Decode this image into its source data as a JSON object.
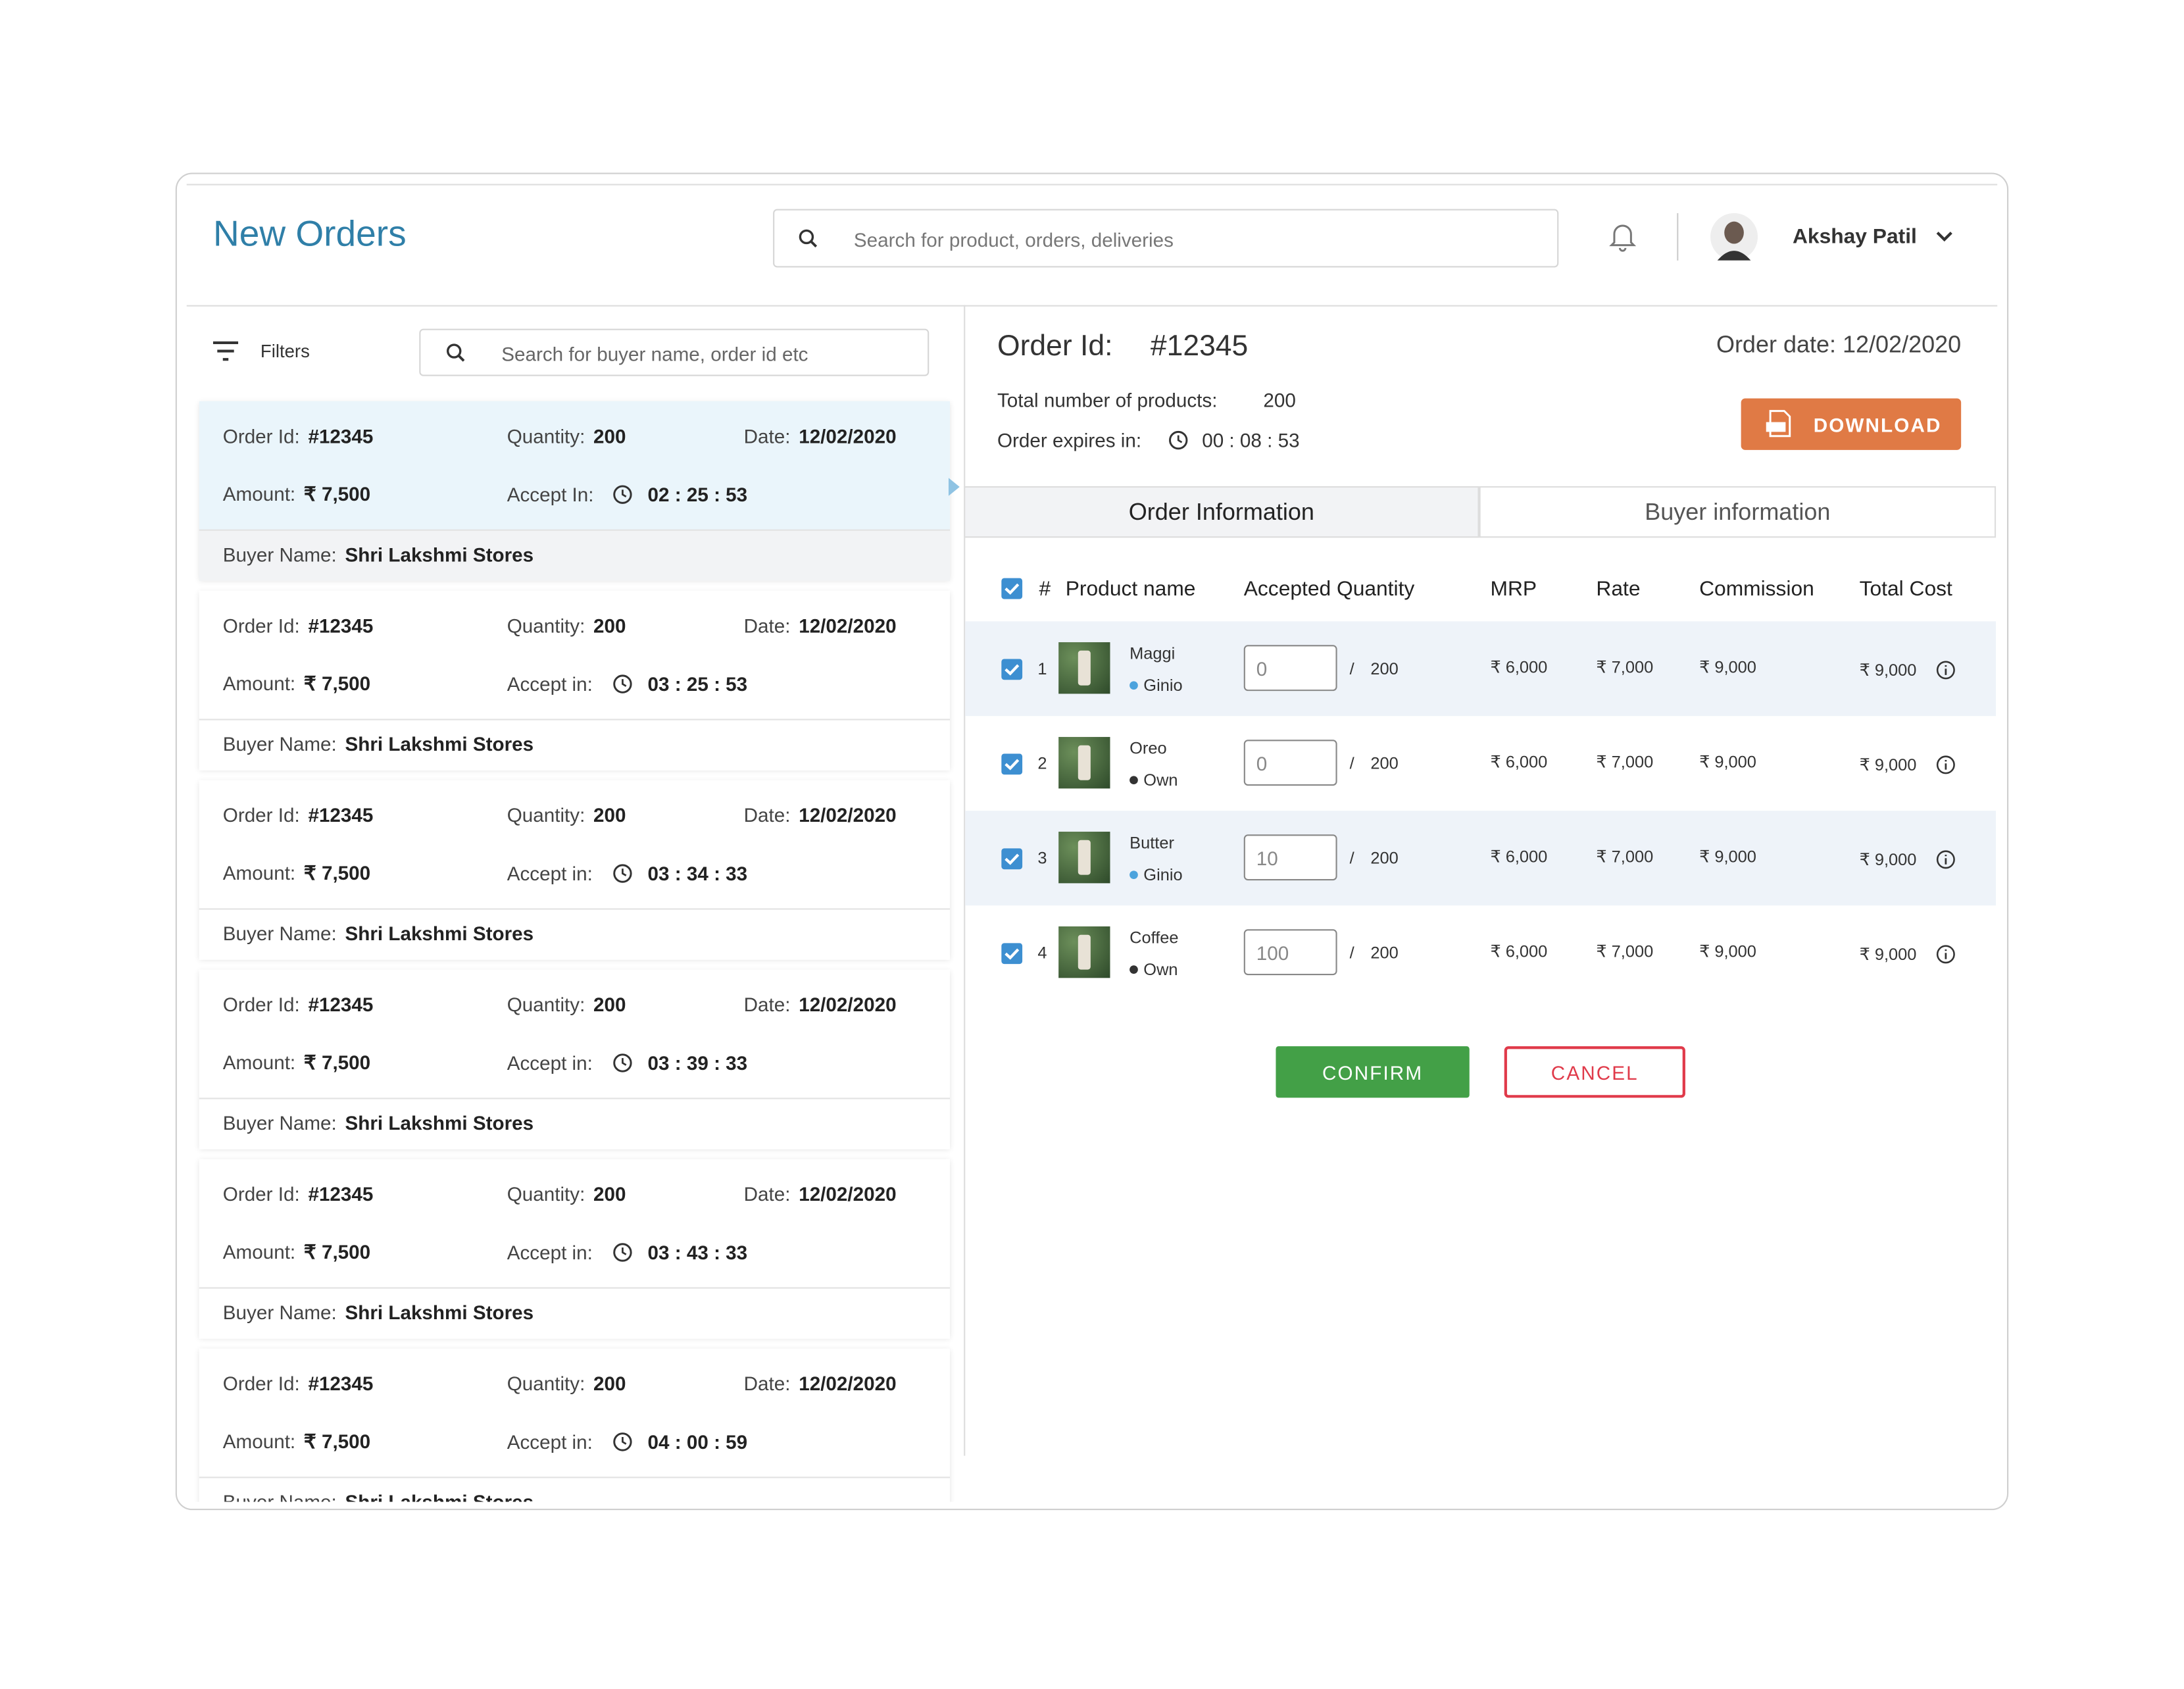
{
  "header": {
    "title": "New Orders",
    "search_placeholder": "Search for product, orders, deliveries",
    "user_name": "Akshay Patil"
  },
  "sidebar": {
    "filters": "Filters",
    "search_placeholder": "Search for buyer name, order id etc",
    "labels": {
      "order_id": "Order Id:",
      "quantity": "Quantity:",
      "date": "Date:",
      "amount": "Amount:",
      "buyer": "Buyer Name:"
    },
    "orders": [
      {
        "id": "#12345",
        "quantity": "200",
        "date": "12/02/2020",
        "amount": "₹ 7,500",
        "accept_label": "Accept In:",
        "accept_time": "02 : 25 : 53",
        "buyer": "Shri Lakshmi Stores"
      },
      {
        "id": "#12345",
        "quantity": "200",
        "date": "12/02/2020",
        "amount": "₹ 7,500",
        "accept_label": "Accept in:",
        "accept_time": "03 : 25 : 53",
        "buyer": "Shri Lakshmi Stores"
      },
      {
        "id": "#12345",
        "quantity": "200",
        "date": "12/02/2020",
        "amount": "₹ 7,500",
        "accept_label": "Accept in:",
        "accept_time": "03 : 34 : 33",
        "buyer": "Shri Lakshmi Stores"
      },
      {
        "id": "#12345",
        "quantity": "200",
        "date": "12/02/2020",
        "amount": "₹ 7,500",
        "accept_label": "Accept in:",
        "accept_time": "03 : 39 : 33",
        "buyer": "Shri Lakshmi Stores"
      },
      {
        "id": "#12345",
        "quantity": "200",
        "date": "12/02/2020",
        "amount": "₹ 7,500",
        "accept_label": "Accept in:",
        "accept_time": "03 : 43 : 33",
        "buyer": "Shri Lakshmi Stores"
      },
      {
        "id": "#12345",
        "quantity": "200",
        "date": "12/02/2020",
        "amount": "₹ 7,500",
        "accept_label": "Accept in:",
        "accept_time": "04 : 00 : 59",
        "buyer": "Shri Lakshmi Stores"
      }
    ]
  },
  "detail": {
    "order_id_label": "Order Id:",
    "order_id": "#12345",
    "order_date": "Order date: 12/02/2020",
    "total_products_label": "Total number of products:",
    "total_products": "200",
    "expires_label": "Order expires in:",
    "expires": "00 : 08 : 53",
    "download": "DOWNLOAD",
    "tabs": [
      "Order Information",
      "Buyer information"
    ],
    "columns": [
      "#",
      "Product name",
      "Accepted Quantity",
      "MRP",
      "Rate",
      "Commission",
      "Total Cost"
    ],
    "qty_separator": "/",
    "products": [
      {
        "index": 1,
        "name": "Maggi",
        "source": "Ginio",
        "accepted": "0",
        "total": "200",
        "mrp": "₹ 6,000",
        "rate": "₹ 7,000",
        "commission": "₹ 9,000",
        "total_cost": "₹ 9,000"
      },
      {
        "index": 2,
        "name": "Oreo",
        "source": "Own",
        "accepted": "0",
        "total": "200",
        "mrp": "₹ 6,000",
        "rate": "₹ 7,000",
        "commission": "₹ 9,000",
        "total_cost": "₹ 9,000"
      },
      {
        "index": 3,
        "name": "Butter",
        "source": "Ginio",
        "accepted": "10",
        "total": "200",
        "mrp": "₹ 6,000",
        "rate": "₹ 7,000",
        "commission": "₹ 9,000",
        "total_cost": "₹ 9,000"
      },
      {
        "index": 4,
        "name": "Coffee",
        "source": "Own",
        "accepted": "100",
        "total": "200",
        "mrp": "₹ 6,000",
        "rate": "₹ 7,000",
        "commission": "₹ 9,000",
        "total_cost": "₹ 9,000"
      }
    ],
    "confirm": "CONFIRM",
    "cancel": "CANCEL"
  }
}
